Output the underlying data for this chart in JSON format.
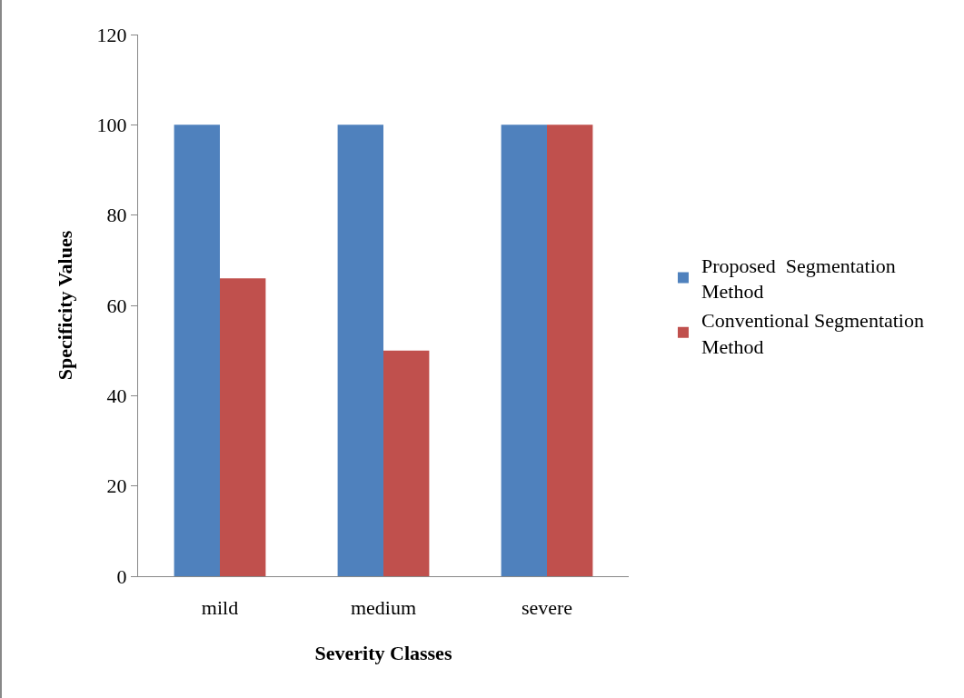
{
  "chart_data": {
    "type": "bar",
    "xlabel": "Severity Classes",
    "ylabel": "Specificity Values",
    "categories": [
      "mild",
      "medium",
      "severe"
    ],
    "series": [
      {
        "name": "Proposed  Segmentation Method",
        "color": "#4f81bd",
        "values": [
          100,
          100,
          100
        ]
      },
      {
        "name": "Conventional Segmentation Method",
        "color": "#c0504d",
        "values": [
          66,
          50,
          100
        ]
      }
    ],
    "ylim": [
      0,
      120
    ],
    "yticks": [
      0,
      20,
      40,
      60,
      80,
      100,
      120
    ],
    "grid": false,
    "legend": "right"
  }
}
